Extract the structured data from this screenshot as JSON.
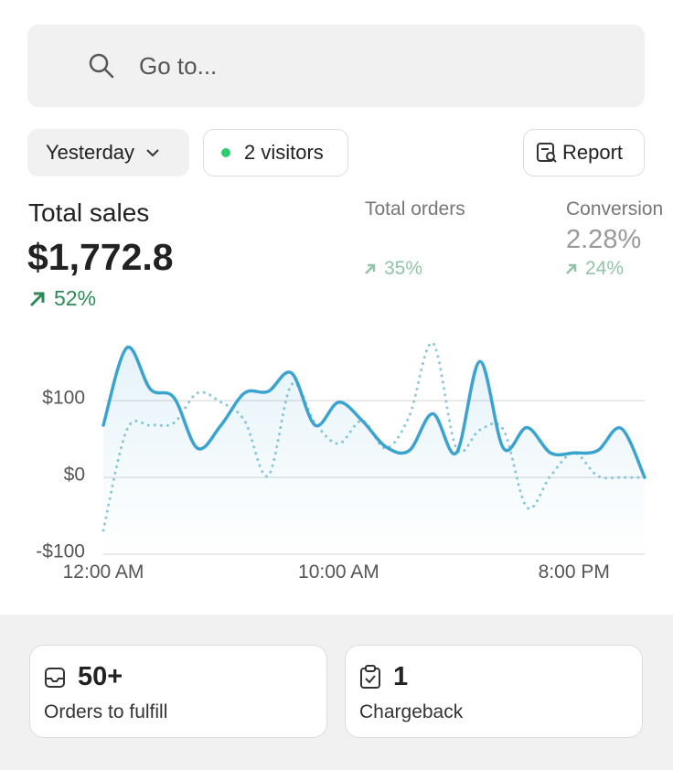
{
  "search": {
    "placeholder": "Go to..."
  },
  "filters": {
    "period": "Yesterday",
    "visitors": "2 visitors",
    "report": "Report"
  },
  "metrics": [
    {
      "label": "Total sales",
      "value": "$1,772.8",
      "change": "52%"
    },
    {
      "label": "Total orders",
      "change": "35%"
    },
    {
      "label": "Conversion",
      "value": "2.28%",
      "change": "24%"
    }
  ],
  "chart_data": {
    "type": "line",
    "x": [
      0,
      1,
      2,
      3,
      4,
      5,
      6,
      7,
      8,
      9,
      10,
      11,
      12,
      13,
      14,
      15,
      16,
      17,
      18,
      19,
      20,
      21,
      22,
      23
    ],
    "series": [
      {
        "color": "#3ba3cf",
        "style": "solid",
        "values": [
          68,
          169,
          115,
          104,
          38,
          68,
          110,
          112,
          136,
          68,
          98,
          74,
          40,
          35,
          83,
          32,
          151,
          38,
          65,
          32,
          32,
          35,
          64,
          0
        ]
      },
      {
        "color": "#8cc8dc",
        "style": "dotted",
        "values": [
          -69,
          62,
          68,
          71,
          110,
          98,
          74,
          2,
          121,
          71,
          44,
          74,
          38,
          80,
          175,
          38,
          62,
          62,
          -39,
          2,
          32,
          2,
          0,
          0
        ]
      }
    ],
    "xlim": [
      0,
      23
    ],
    "xticks": [
      {
        "value": 0,
        "label": "12:00 AM"
      },
      {
        "value": 10,
        "label": "10:00 AM"
      },
      {
        "value": 20,
        "label": "8:00 PM"
      }
    ],
    "ylim": [
      -100,
      180
    ],
    "yticks": [
      {
        "value": -100,
        "label": "-$100"
      },
      {
        "value": 0,
        "label": "$0"
      },
      {
        "value": 100,
        "label": "$100"
      }
    ],
    "grid": true
  },
  "cards": [
    {
      "value": "50+",
      "label": "Orders to fulfill"
    },
    {
      "value": "1",
      "label": "Chargeback"
    }
  ]
}
